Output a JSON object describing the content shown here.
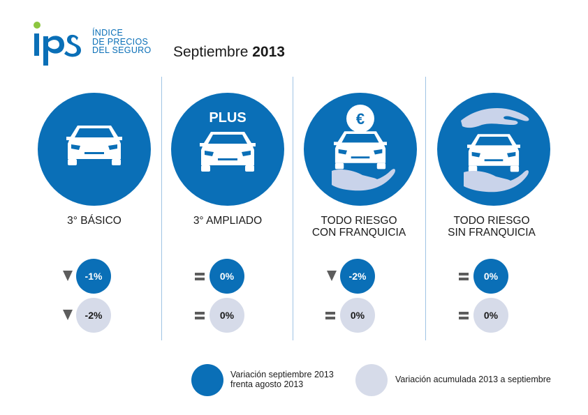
{
  "header": {
    "logo_text": "ipS",
    "logo_subtitle": [
      "ÍNDICE",
      "DE PRECIOS",
      "DEL SEGURO"
    ],
    "title_month": "Septiembre",
    "title_year": "2013"
  },
  "colors": {
    "primary_blue": "#0a6fb7",
    "light_gray": "#d6dbe9",
    "indicator_gray": "#5d5d5d",
    "logo_green": "#8cc63f",
    "divider": "#9fc3e4"
  },
  "categories": [
    {
      "icon": "car-icon",
      "label_lines": [
        "3° BÁSICO"
      ],
      "monthly": {
        "indicator": "down",
        "value": "-1%"
      },
      "accumulated": {
        "indicator": "down",
        "value": "-2%"
      }
    },
    {
      "icon": "car-plus-icon",
      "icon_text": "PLUS",
      "label_lines": [
        "3° AMPLIADO"
      ],
      "monthly": {
        "indicator": "equal",
        "value": "0%"
      },
      "accumulated": {
        "indicator": "equal",
        "value": "0%"
      }
    },
    {
      "icon": "car-euro-hand-icon",
      "icon_text": "€",
      "label_lines": [
        "TODO RIESGO",
        "CON FRANQUICIA"
      ],
      "monthly": {
        "indicator": "down",
        "value": "-2%"
      },
      "accumulated": {
        "indicator": "equal",
        "value": "0%"
      }
    },
    {
      "icon": "car-hands-icon",
      "label_lines": [
        "TODO RIESGO",
        "SIN FRANQUICIA"
      ],
      "monthly": {
        "indicator": "equal",
        "value": "0%"
      },
      "accumulated": {
        "indicator": "equal",
        "value": "0%"
      }
    }
  ],
  "legend": {
    "monthly_lines": [
      "Variación septiembre 2013",
      "frenta agosto 2013"
    ],
    "accumulated_text": "Variación acumulada 2013 a septiembre"
  }
}
